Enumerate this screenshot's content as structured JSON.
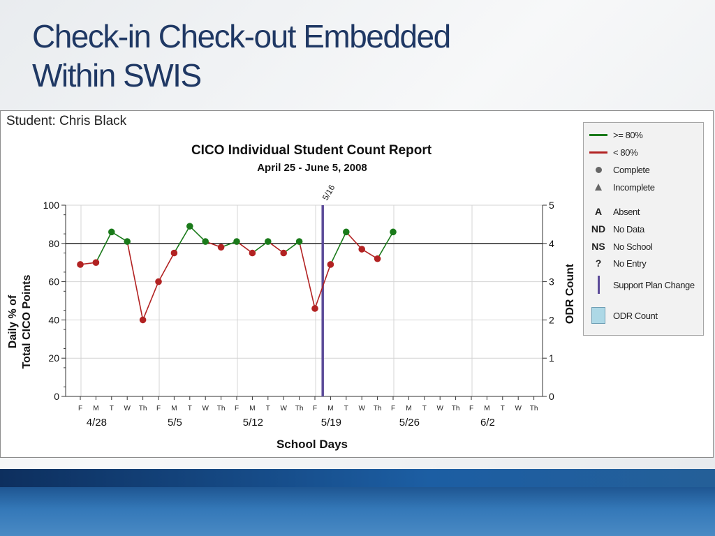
{
  "slide": {
    "title_line1": "Check-in Check-out Embedded",
    "title_line2": "Within SWIS"
  },
  "report": {
    "student_label": "Student: Chris Black"
  },
  "colors": {
    "title": "#1f3864",
    "above_goal": "#1a7a1a",
    "below_goal": "#b22222",
    "support_change": "#5c4b99",
    "odr_box": "#add8e6"
  },
  "legend": {
    "items": [
      {
        "symbol_type": "line-green",
        "symbol": "",
        "label": ">= 80%"
      },
      {
        "symbol_type": "line-red",
        "symbol": "",
        "label": "< 80%"
      },
      {
        "symbol_type": "dot",
        "symbol": "",
        "label": "Complete"
      },
      {
        "symbol_type": "triangle",
        "symbol": "",
        "label": "Incomplete"
      },
      {
        "symbol_type": "text",
        "symbol": "A",
        "label": "Absent"
      },
      {
        "symbol_type": "text",
        "symbol": "ND",
        "label": "No Data"
      },
      {
        "symbol_type": "text",
        "symbol": "NS",
        "label": "No School"
      },
      {
        "symbol_type": "text",
        "symbol": "?",
        "label": "No Entry"
      },
      {
        "symbol_type": "bar",
        "symbol": "",
        "label": "Support Plan Change"
      },
      {
        "symbol_type": "box",
        "symbol": "",
        "label": "ODR Count"
      }
    ]
  },
  "chart_data": {
    "type": "line",
    "title": "CICO Individual Student Count Report",
    "subtitle": "April 25 - June 5, 2008",
    "xlabel": "School Days",
    "ylabel_line1": "Daily % of",
    "ylabel_line2": "Total CICO Points",
    "y2label": "ODR Count",
    "ylim": [
      0,
      100
    ],
    "y_ticks": [
      0,
      20,
      40,
      60,
      80,
      100
    ],
    "y2lim": [
      0,
      5
    ],
    "y2_ticks": [
      0,
      1,
      2,
      3,
      4,
      5
    ],
    "goal_line": 80,
    "grid": true,
    "day_labels": [
      "F",
      "M",
      "T",
      "W",
      "Th",
      "F",
      "M",
      "T",
      "W",
      "Th",
      "F",
      "M",
      "T",
      "W",
      "Th",
      "F",
      "M",
      "T",
      "W",
      "Th",
      "F",
      "M",
      "T",
      "W",
      "Th",
      "F",
      "M",
      "T",
      "W",
      "Th"
    ],
    "week_labels": [
      {
        "day_index": 1,
        "label": "4/28"
      },
      {
        "day_index": 6,
        "label": "5/5"
      },
      {
        "day_index": 11,
        "label": "5/12"
      },
      {
        "day_index": 16,
        "label": "5/19"
      },
      {
        "day_index": 21,
        "label": "5/26"
      },
      {
        "day_index": 26,
        "label": "6/2"
      }
    ],
    "values": [
      69,
      70,
      86,
      81,
      40,
      60,
      75,
      89,
      81,
      78,
      81,
      75,
      81,
      75,
      81,
      46,
      69,
      86,
      77,
      72,
      86,
      null,
      null,
      null,
      null,
      null,
      null,
      null,
      null,
      null
    ],
    "support_plan_change": {
      "after_day_index": 15,
      "label": "5/16"
    }
  }
}
